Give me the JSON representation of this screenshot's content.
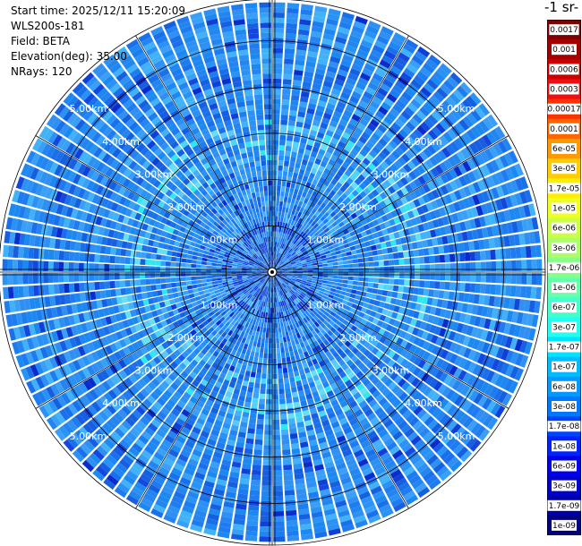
{
  "info": {
    "start_time": "Start time: 2025/12/11 15:20:09",
    "instrument": "WLS200s-181",
    "field": "Field: BETA",
    "elevation": "Elevation(deg): 35.00",
    "nrays": "NRays: 120"
  },
  "colorbar": {
    "title": "-1 sr-",
    "labels": [
      "0.0017",
      "0.001",
      "0.0006",
      "0.0003",
      "0.00017",
      "0.0001",
      "6e-05",
      "3e-05",
      "1.7e-05",
      "1e-05",
      "6e-06",
      "3e-06",
      "1.7e-06",
      "1e-06",
      "6e-07",
      "3e-07",
      "1.7e-07",
      "1e-07",
      "6e-08",
      "3e-08",
      "1.7e-08",
      "1e-08",
      "6e-09",
      "3e-09",
      "1.7e-09",
      "1e-09"
    ],
    "colors": [
      "#7f0000",
      "#a50000",
      "#cc0000",
      "#ee1010",
      "#ff3300",
      "#ff6600",
      "#ff9900",
      "#ffcc00",
      "#ffee00",
      "#eeff22",
      "#ccff44",
      "#aaff66",
      "#88ff88",
      "#66ffaa",
      "#44ffcc",
      "#22ffee",
      "#00e5ff",
      "#00bbff",
      "#0099ff",
      "#0077ff",
      "#0044ff",
      "#0022ff",
      "#0000ee",
      "#0000cc",
      "#0000aa",
      "#000080"
    ]
  },
  "chart_data": {
    "type": "heatmap",
    "projection": "polar (PPI scan)",
    "nrays": 120,
    "elevation_deg": 35.0,
    "field": "BETA",
    "range_unit": "km",
    "range_rings": [
      1.0,
      2.0,
      3.0,
      4.0,
      5.0
    ],
    "range_ring_labels": [
      "1.00km",
      "2.00km",
      "3.00km",
      "4.00km",
      "5.00km"
    ],
    "max_range_km": 5.9,
    "dominant_value_range": [
      "3e-08",
      "1e-07"
    ],
    "color_scale": "log"
  }
}
